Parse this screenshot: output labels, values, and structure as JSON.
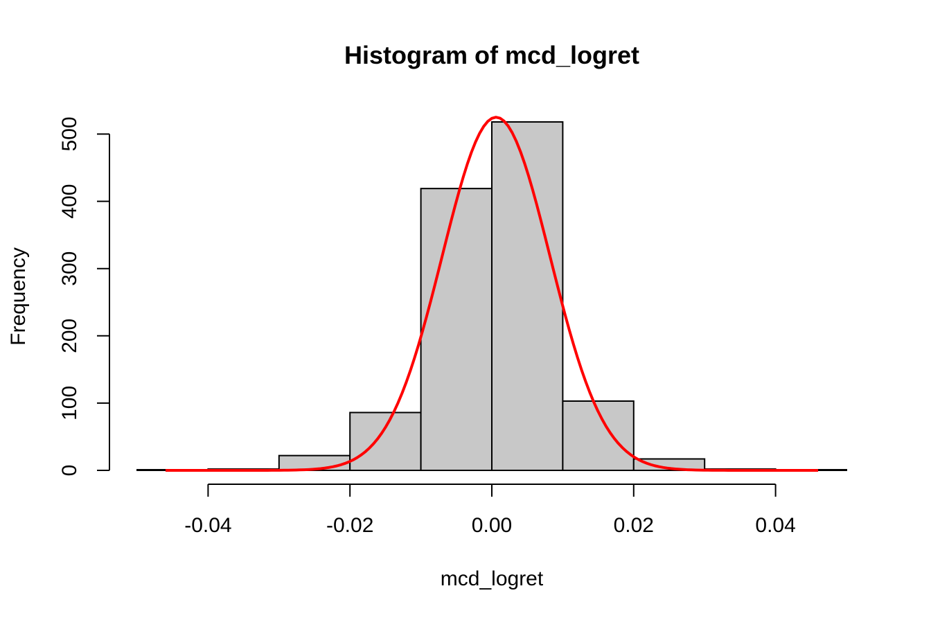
{
  "chart_data": {
    "type": "bar",
    "title": "Histogram of mcd_logret",
    "xlabel": "mcd_logret",
    "ylabel": "Frequency",
    "xlim": [
      -0.05,
      0.05
    ],
    "ylim": [
      0,
      520
    ],
    "bins": [
      {
        "from": -0.05,
        "to": -0.04,
        "value": 1
      },
      {
        "from": -0.04,
        "to": -0.03,
        "value": 2
      },
      {
        "from": -0.03,
        "to": -0.02,
        "value": 22
      },
      {
        "from": -0.02,
        "to": -0.01,
        "value": 86
      },
      {
        "from": -0.01,
        "to": 0.0,
        "value": 419
      },
      {
        "from": 0.0,
        "to": 0.01,
        "value": 518
      },
      {
        "from": 0.01,
        "to": 0.02,
        "value": 103
      },
      {
        "from": 0.02,
        "to": 0.03,
        "value": 17
      },
      {
        "from": 0.03,
        "to": 0.04,
        "value": 2
      },
      {
        "from": 0.04,
        "to": 0.05,
        "value": 1
      }
    ],
    "x_ticks": [
      -0.04,
      -0.02,
      0.0,
      0.02,
      0.04
    ],
    "x_tick_labels": [
      "-0.04",
      "-0.02",
      "0.00",
      "0.02",
      "0.04"
    ],
    "y_ticks": [
      0,
      100,
      200,
      300,
      400,
      500
    ],
    "y_tick_labels": [
      "0",
      "100",
      "200",
      "300",
      "400",
      "500"
    ],
    "density_curve": {
      "color": "#ff0000",
      "mean": 0.0006,
      "sd": 0.0076,
      "x_range": [
        -0.046,
        0.046
      ],
      "peak": 525
    },
    "bar_fill": "#c8c8c8",
    "grid": false,
    "legend": "none"
  }
}
